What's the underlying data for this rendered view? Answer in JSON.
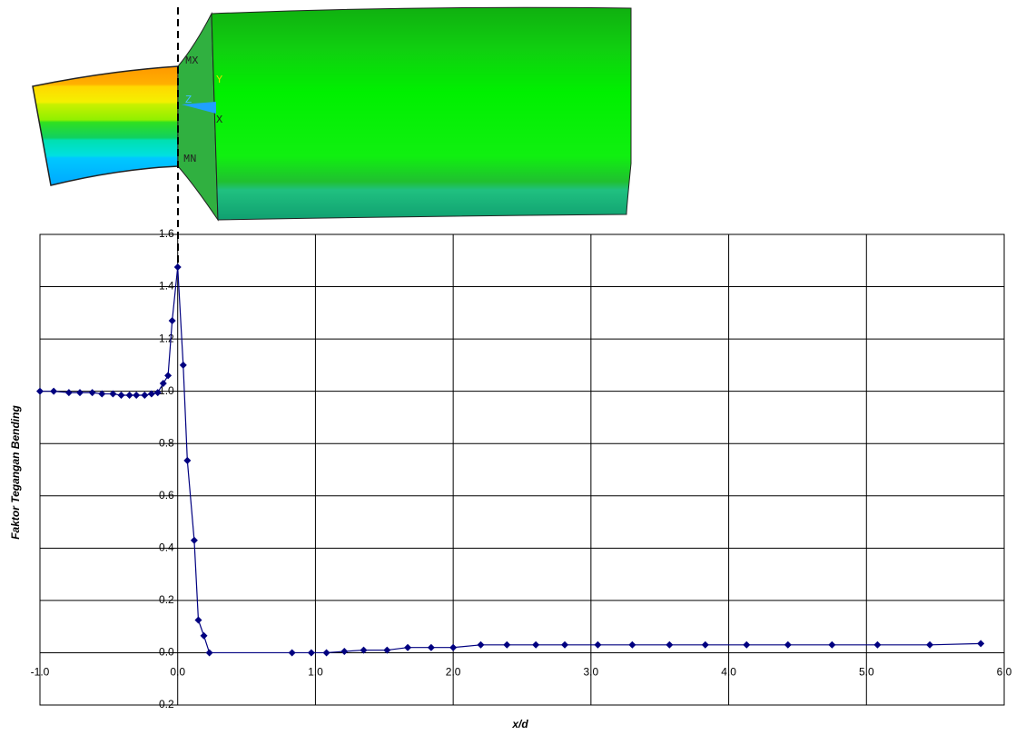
{
  "figure_labels": [
    "MX",
    "MN",
    "Y",
    "Z",
    "X"
  ],
  "chart_data": {
    "type": "line",
    "x_label": "x/d",
    "y_label": "Faktor Tegangan Bending",
    "x": [
      -1.0,
      -0.9,
      -0.79,
      -0.71,
      -0.62,
      -0.55,
      -0.47,
      -0.41,
      -0.35,
      -0.3,
      -0.24,
      -0.19,
      -0.145,
      -0.105,
      -0.07,
      -0.04,
      0.0,
      0.04,
      0.07,
      0.12,
      0.15,
      0.19,
      0.23,
      0.83,
      0.97,
      1.08,
      1.21,
      1.35,
      1.52,
      1.67,
      1.84,
      2.0,
      2.2,
      2.39,
      2.6,
      2.81,
      3.05,
      3.3,
      3.57,
      3.83,
      4.13,
      4.43,
      4.75,
      5.08,
      5.46,
      5.83
    ],
    "series": [
      {
        "color": "#000080",
        "values": [
          1.0,
          1.0,
          0.995,
          0.995,
          0.995,
          0.99,
          0.99,
          0.985,
          0.985,
          0.985,
          0.985,
          0.99,
          0.995,
          1.03,
          1.06,
          1.27,
          1.475,
          1.1,
          0.735,
          0.43,
          0.125,
          0.065,
          0.0,
          0.0,
          0.0,
          0.0,
          0.005,
          0.01,
          0.01,
          0.02,
          0.02,
          0.02,
          0.03,
          0.03,
          0.03,
          0.03,
          0.03,
          0.03,
          0.03,
          0.03,
          0.03,
          0.03,
          0.03,
          0.03,
          0.03,
          0.035
        ]
      }
    ],
    "xlim": [
      -1.0,
      6.0
    ],
    "xticks": [
      {
        "value": -1,
        "label": "-1.0"
      },
      {
        "value": 0,
        "label": "0.0"
      },
      {
        "value": 1,
        "label": "1.0"
      },
      {
        "value": 2,
        "label": "2.0"
      },
      {
        "value": 3,
        "label": "3.0"
      },
      {
        "value": 4,
        "label": "4.0"
      },
      {
        "value": 5,
        "label": "5.0"
      },
      {
        "value": 6,
        "label": "6.0"
      }
    ],
    "ylim": [
      -0.2,
      1.6
    ],
    "yticks": [
      -0.2,
      {
        "value": 0,
        "label": "0.0"
      },
      0.2,
      0.4,
      0.6,
      0.8,
      {
        "value": 1,
        "label": "1.0"
      },
      1.2,
      1.4,
      1.6
    ],
    "grid": true
  }
}
